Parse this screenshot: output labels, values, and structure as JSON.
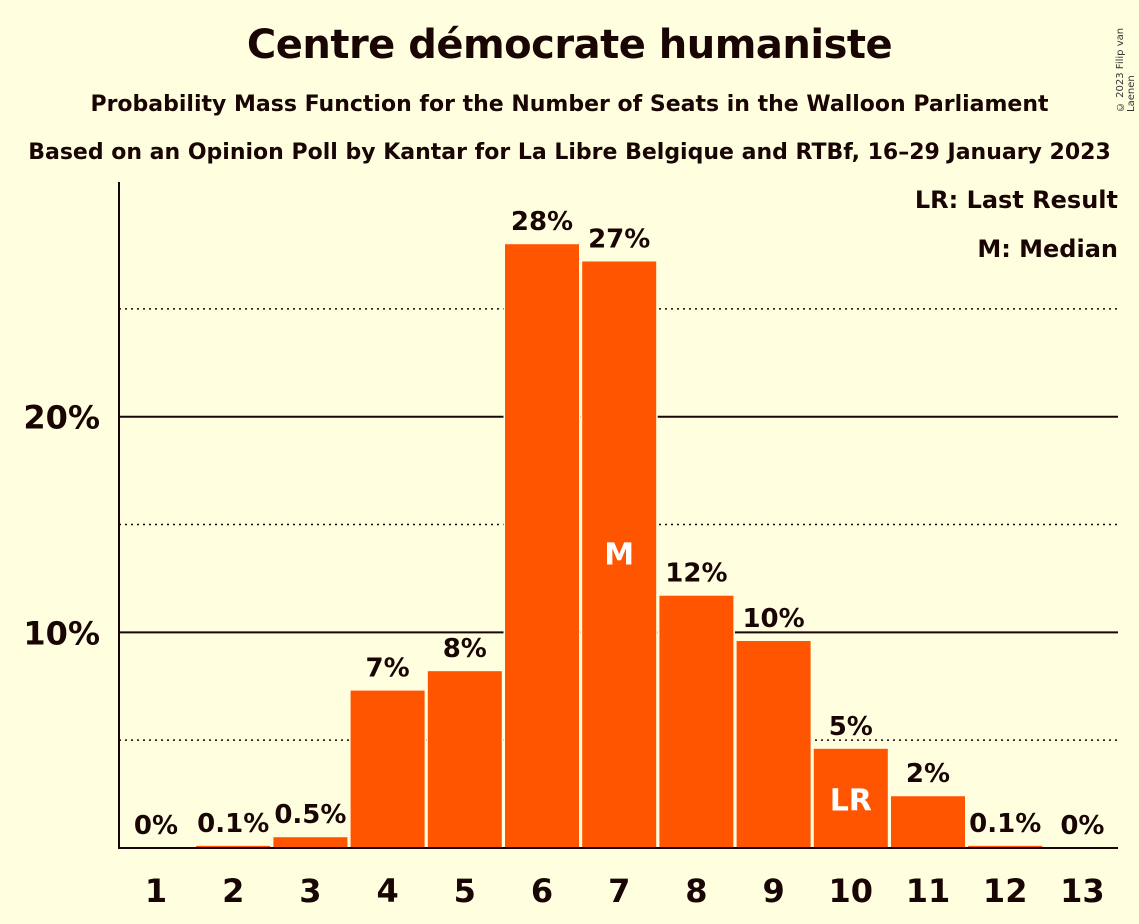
{
  "chart_data": {
    "type": "bar",
    "title": "Centre démocrate humaniste",
    "subtitle": "Probability Mass Function for the Number of Seats in the Walloon Parliament",
    "subtitle2": "Based on an Opinion Poll by Kantar for La Libre Belgique and RTBf, 16–29 January 2023",
    "copyright": "© 2023 Filip van Laenen",
    "categories": [
      "1",
      "2",
      "3",
      "4",
      "5",
      "6",
      "7",
      "8",
      "9",
      "10",
      "11",
      "12",
      "13"
    ],
    "values": [
      0,
      0.1,
      0.5,
      7.3,
      8.2,
      28.0,
      27.2,
      11.7,
      9.6,
      4.6,
      2.4,
      0.1,
      0
    ],
    "value_labels": [
      "0%",
      "0.1%",
      "0.5%",
      "7%",
      "8%",
      "28%",
      "27%",
      "12%",
      "10%",
      "5%",
      "2%",
      "0.1%",
      "0%"
    ],
    "ylim": [
      0,
      30.7
    ],
    "yticks": [
      {
        "value": 10,
        "label": "10%"
      },
      {
        "value": 20,
        "label": "20%"
      }
    ],
    "minor_gridlines": [
      5,
      15,
      25
    ],
    "grid": true,
    "bar_color": "#ff5500",
    "background_color": "#ffffe0",
    "median_index": 6,
    "median_marker": "M",
    "last_result_index": 9,
    "last_result_marker": "LR",
    "legend": {
      "placement": "top-right",
      "items": [
        "LR: Last Result",
        "M: Median"
      ]
    }
  }
}
